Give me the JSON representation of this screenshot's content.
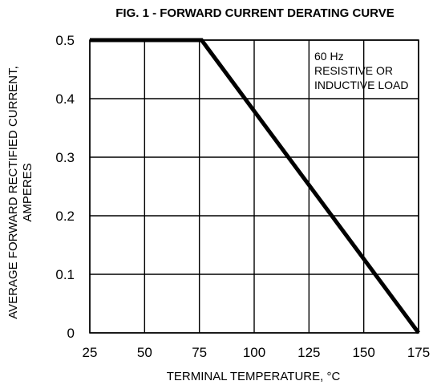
{
  "chart_data": {
    "type": "line",
    "title": "FIG. 1 - FORWARD CURRENT DERATING CURVE",
    "xlabel": "TERMINAL TEMPERATURE, °C",
    "ylabel_lines": [
      "AVERAGE FORWARD RECTIFIED CURRENT,",
      "AMPERES"
    ],
    "xlim": [
      25,
      175
    ],
    "ylim": [
      0,
      0.5
    ],
    "x_ticks": [
      25,
      50,
      75,
      100,
      125,
      150,
      175
    ],
    "y_ticks": [
      0,
      0.1,
      0.2,
      0.3,
      0.4,
      0.5
    ],
    "x_tick_labels": [
      "25",
      "50",
      "75",
      "100",
      "125",
      "150",
      "175"
    ],
    "y_tick_labels": [
      "0",
      "0.1",
      "0.2",
      "0.3",
      "0.4",
      "0.5"
    ],
    "grid": true,
    "legend": "none",
    "annotation_lines": [
      "60 Hz",
      "RESISTIVE OR",
      "INDUCTIVE LOAD"
    ],
    "series": [
      {
        "x": [
          25,
          76,
          175
        ],
        "y": [
          0.5,
          0.5,
          0.0
        ]
      }
    ]
  }
}
